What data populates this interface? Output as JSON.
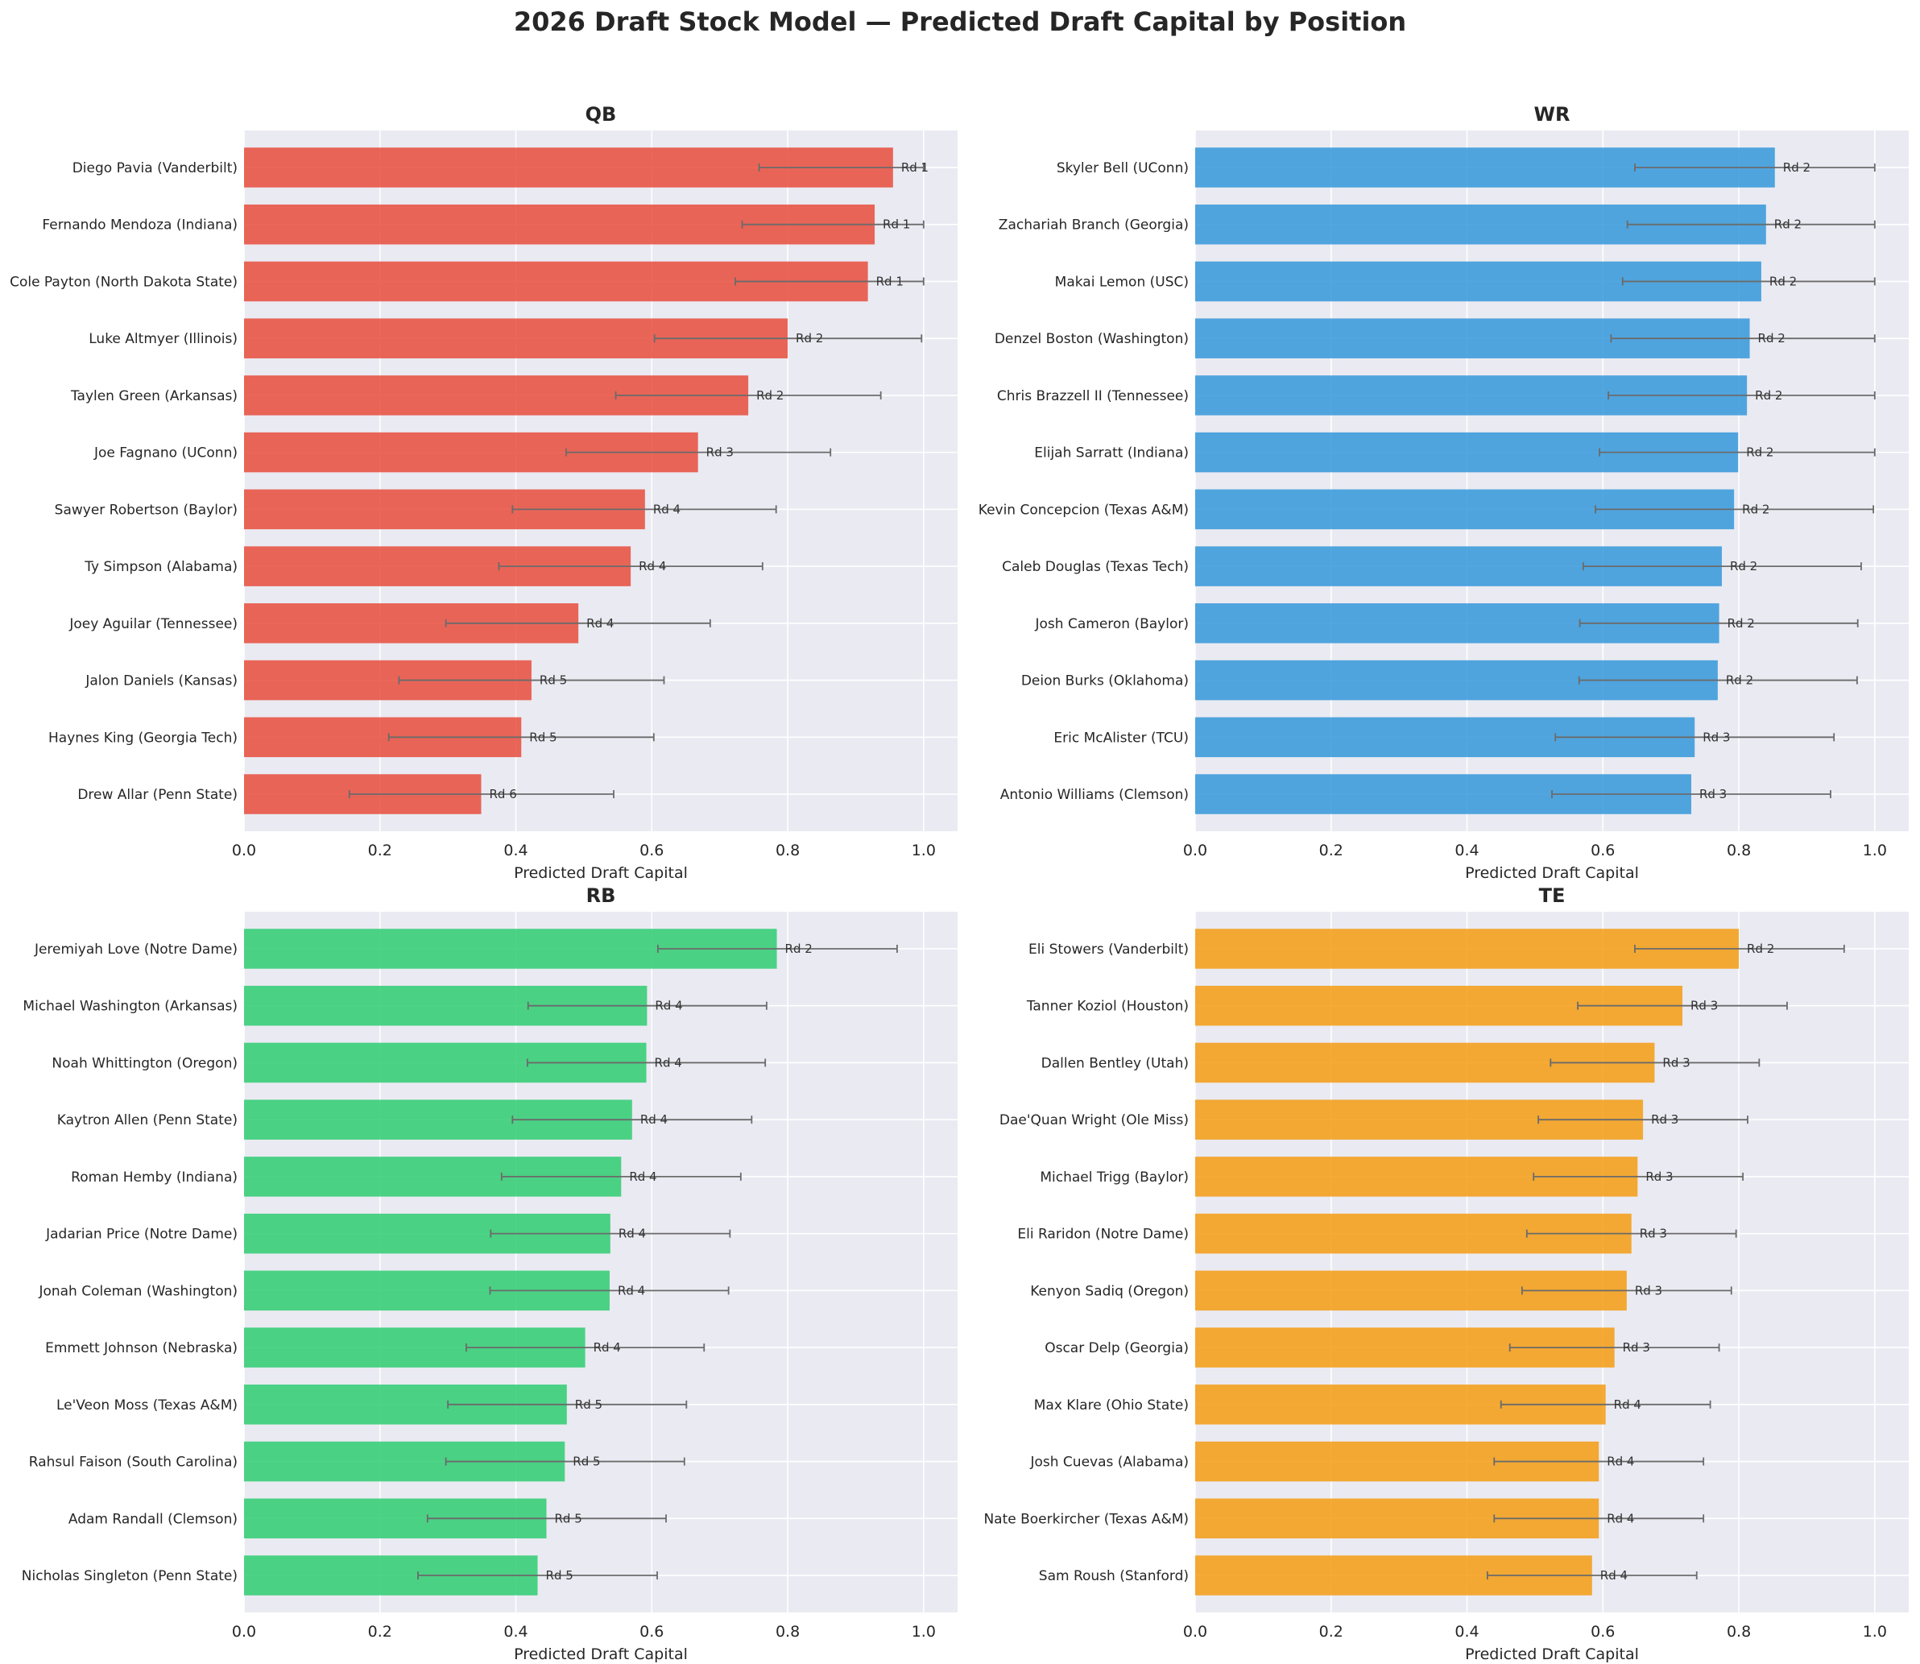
{
  "figure_title": "2026 Draft Stock Model — Predicted Draft Capital by Position",
  "chart_data": [
    {
      "type": "bar",
      "orientation": "horizontal",
      "title": "QB",
      "xlabel": "Predicted Draft Capital",
      "xlim": [
        0,
        1.05
      ],
      "xticks": [
        "0.0",
        "0.2",
        "0.4",
        "0.6",
        "0.8",
        "1.0"
      ],
      "grid": true,
      "color": "#e74c3c",
      "categories": [
        "Diego Pavia (Vanderbilt)",
        "Fernando Mendoza (Indiana)",
        "Cole Payton (North Dakota State)",
        "Luke Altmyer (Illinois)",
        "Taylen Green (Arkansas)",
        "Joe Fagnano (UConn)",
        "Sawyer Robertson (Baylor)",
        "Ty Simpson (Alabama)",
        "Joey Aguilar (Tennessee)",
        "Jalon Daniels (Kansas)",
        "Haynes King (Georgia Tech)",
        "Drew Allar (Penn State)"
      ],
      "values": [
        0.955,
        0.928,
        0.918,
        0.8,
        0.742,
        0.668,
        0.59,
        0.569,
        0.492,
        0.423,
        0.408,
        0.349
      ],
      "error_low": [
        0.758,
        0.733,
        0.723,
        0.604,
        0.547,
        0.474,
        0.395,
        0.375,
        0.297,
        0.228,
        0.213,
        0.155
      ],
      "error_high": [
        1.0,
        1.0,
        1.0,
        0.997,
        0.937,
        0.863,
        0.783,
        0.763,
        0.686,
        0.618,
        0.603,
        0.544
      ],
      "labels": [
        "Rd 1",
        "Rd 1",
        "Rd 1",
        "Rd 2",
        "Rd 2",
        "Rd 3",
        "Rd 4",
        "Rd 4",
        "Rd 4",
        "Rd 5",
        "Rd 5",
        "Rd 6"
      ]
    },
    {
      "type": "bar",
      "orientation": "horizontal",
      "title": "WR",
      "xlabel": "Predicted Draft Capital",
      "xlim": [
        0,
        1.05
      ],
      "xticks": [
        "0.0",
        "0.2",
        "0.4",
        "0.6",
        "0.8",
        "1.0"
      ],
      "grid": true,
      "color": "#3498db",
      "categories": [
        "Skyler Bell (UConn)",
        "Zachariah Branch (Georgia)",
        "Makai Lemon (USC)",
        "Denzel Boston (Washington)",
        "Chris Brazzell II (Tennessee)",
        "Elijah Sarratt (Indiana)",
        "Kevin Concepcion (Texas A&M)",
        "Caleb Douglas (Texas Tech)",
        "Josh Cameron (Baylor)",
        "Deion Burks (Oklahoma)",
        "Eric McAlister (TCU)",
        "Antonio Williams (Clemson)"
      ],
      "values": [
        0.853,
        0.84,
        0.833,
        0.816,
        0.812,
        0.799,
        0.793,
        0.775,
        0.771,
        0.769,
        0.735,
        0.73
      ],
      "error_low": [
        0.647,
        0.636,
        0.629,
        0.612,
        0.608,
        0.595,
        0.589,
        0.571,
        0.566,
        0.565,
        0.53,
        0.525
      ],
      "error_high": [
        1.0,
        1.0,
        1.0,
        1.0,
        1.0,
        1.0,
        0.998,
        0.98,
        0.975,
        0.974,
        0.94,
        0.935
      ],
      "labels": [
        "Rd 2",
        "Rd 2",
        "Rd 2",
        "Rd 2",
        "Rd 2",
        "Rd 2",
        "Rd 2",
        "Rd 2",
        "Rd 2",
        "Rd 2",
        "Rd 3",
        "Rd 3"
      ]
    },
    {
      "type": "bar",
      "orientation": "horizontal",
      "title": "RB",
      "xlabel": "Predicted Draft Capital",
      "xlim": [
        0,
        1.05
      ],
      "xticks": [
        "0.0",
        "0.2",
        "0.4",
        "0.6",
        "0.8",
        "1.0"
      ],
      "grid": true,
      "color": "#2ecc71",
      "categories": [
        "Jeremiyah Love (Notre Dame)",
        "Michael Washington (Arkansas)",
        "Noah Whittington (Oregon)",
        "Kaytron Allen (Penn State)",
        "Roman Hemby (Indiana)",
        "Jadarian Price (Notre Dame)",
        "Jonah Coleman (Washington)",
        "Emmett Johnson (Nebraska)",
        "Le'Veon Moss (Texas A&M)",
        "Rahsul Faison (South Carolina)",
        "Adam Randall (Clemson)",
        "Nicholas Singleton (Penn State)"
      ],
      "values": [
        0.784,
        0.593,
        0.592,
        0.571,
        0.555,
        0.539,
        0.538,
        0.502,
        0.475,
        0.472,
        0.445,
        0.432
      ],
      "error_low": [
        0.609,
        0.418,
        0.417,
        0.395,
        0.379,
        0.363,
        0.362,
        0.327,
        0.3,
        0.297,
        0.27,
        0.256
      ],
      "error_high": [
        0.961,
        0.769,
        0.767,
        0.747,
        0.731,
        0.715,
        0.713,
        0.677,
        0.651,
        0.648,
        0.621,
        0.608
      ],
      "labels": [
        "Rd 2",
        "Rd 4",
        "Rd 4",
        "Rd 4",
        "Rd 4",
        "Rd 4",
        "Rd 4",
        "Rd 4",
        "Rd 5",
        "Rd 5",
        "Rd 5",
        "Rd 5"
      ]
    },
    {
      "type": "bar",
      "orientation": "horizontal",
      "title": "TE",
      "xlabel": "Predicted Draft Capital",
      "xlim": [
        0,
        1.05
      ],
      "xticks": [
        "0.0",
        "0.2",
        "0.4",
        "0.6",
        "0.8",
        "1.0"
      ],
      "grid": true,
      "color": "#f39c12",
      "categories": [
        "Eli Stowers (Vanderbilt)",
        "Tanner Koziol (Houston)",
        "Dallen Bentley (Utah)",
        "Dae'Quan Wright (Ole Miss)",
        "Michael Trigg (Baylor)",
        "Eli Raridon (Notre Dame)",
        "Kenyon Sadiq (Oregon)",
        "Oscar Delp (Georgia)",
        "Max Klare (Ohio State)",
        "Josh Cuevas (Alabama)",
        "Nate Boerkircher (Texas A&M)",
        "Sam Roush (Stanford)"
      ],
      "values": [
        0.8,
        0.717,
        0.676,
        0.659,
        0.651,
        0.642,
        0.635,
        0.617,
        0.604,
        0.594,
        0.594,
        0.584
      ],
      "error_low": [
        0.647,
        0.563,
        0.523,
        0.505,
        0.498,
        0.488,
        0.481,
        0.463,
        0.45,
        0.44,
        0.44,
        0.43
      ],
      "error_high": [
        0.955,
        0.871,
        0.83,
        0.813,
        0.806,
        0.796,
        0.789,
        0.771,
        0.758,
        0.748,
        0.748,
        0.738
      ],
      "labels": [
        "Rd 2",
        "Rd 3",
        "Rd 3",
        "Rd 3",
        "Rd 3",
        "Rd 3",
        "Rd 3",
        "Rd 3",
        "Rd 4",
        "Rd 4",
        "Rd 4",
        "Rd 4"
      ]
    }
  ]
}
